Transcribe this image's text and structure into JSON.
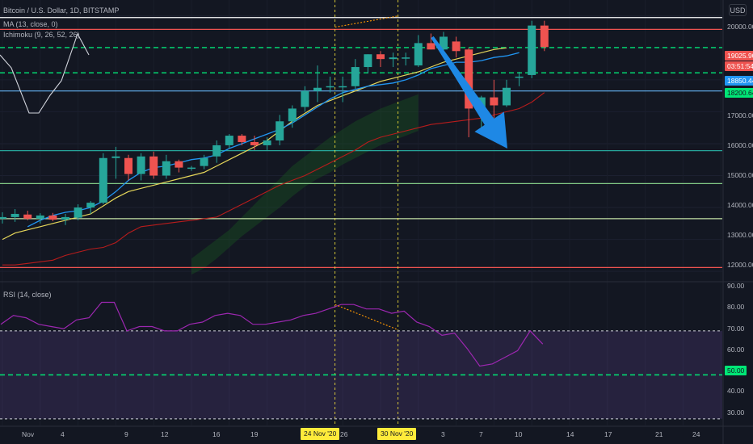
{
  "header": {
    "symbol": "Bitcoin / U.S. Dollar, 1D, BITSTAMP",
    "ma_label": "MA (13, close, 0)",
    "ichimoku_label": "Ichimoku (9, 26, 52, 26)",
    "rsi_label": "RSI (14, close)",
    "currency_button": "USD"
  },
  "price_tags": {
    "last": "19025.90",
    "countdown": "03:51:54",
    "ma": "18850.44",
    "ichimoku": "18200.64",
    "rsi_level": "50.00"
  },
  "x_axis": {
    "ticks": [
      "Nov",
      "4",
      "9",
      "12",
      "16",
      "19",
      "24 Nov '20",
      "26",
      "30 Nov '20",
      "3",
      "7",
      "10",
      "14",
      "17",
      "21",
      "24"
    ],
    "highlights": [
      "24 Nov '20",
      "30 Nov '20"
    ]
  },
  "price_axis": {
    "ticks": [
      "20000.00",
      "17000.00",
      "16000.00",
      "15000.00",
      "14000.00",
      "13000.00",
      "12000.00"
    ]
  },
  "rsi_axis": {
    "ticks": [
      "90.00",
      "80.00",
      "70.00",
      "60.00",
      "40.00",
      "30.00"
    ]
  },
  "colors": {
    "background": "#131722",
    "up": "#26a69a",
    "down": "#ef5350",
    "ma": "#2196f3",
    "tenkan": "#e6d75a",
    "kijun": "#b71c1c",
    "level_green": "#00e676",
    "rsi": "#9c27b0",
    "arrow": "#1e88e5",
    "highlight": "#ffeb3b"
  },
  "chart_data": [
    {
      "type": "candlestick",
      "title": "Bitcoin / U.S. Dollar, 1D, BITSTAMP",
      "ylim": [
        11700,
        20500
      ],
      "candles": [
        {
          "o": 13650,
          "h": 13850,
          "l": 13500,
          "c": 13700
        },
        {
          "o": 13700,
          "h": 13950,
          "l": 13550,
          "c": 13800
        },
        {
          "o": 13780,
          "h": 13900,
          "l": 13600,
          "c": 13650
        },
        {
          "o": 13650,
          "h": 13820,
          "l": 13500,
          "c": 13750
        },
        {
          "o": 13750,
          "h": 13830,
          "l": 13570,
          "c": 13620
        },
        {
          "o": 13620,
          "h": 13800,
          "l": 13450,
          "c": 13700
        },
        {
          "o": 13680,
          "h": 14100,
          "l": 13600,
          "c": 14000
        },
        {
          "o": 14000,
          "h": 14200,
          "l": 13800,
          "c": 14150
        },
        {
          "o": 14150,
          "h": 15700,
          "l": 14100,
          "c": 15550
        },
        {
          "o": 15550,
          "h": 15900,
          "l": 14900,
          "c": 15600
        },
        {
          "o": 15550,
          "h": 15650,
          "l": 14850,
          "c": 15050
        },
        {
          "o": 15050,
          "h": 15700,
          "l": 14850,
          "c": 15600
        },
        {
          "o": 15600,
          "h": 15750,
          "l": 14900,
          "c": 15000
        },
        {
          "o": 15000,
          "h": 15650,
          "l": 14900,
          "c": 15450
        },
        {
          "o": 15450,
          "h": 15500,
          "l": 15100,
          "c": 15250
        },
        {
          "o": 15250,
          "h": 15300,
          "l": 15150,
          "c": 15250
        },
        {
          "o": 15300,
          "h": 15650,
          "l": 15200,
          "c": 15550
        },
        {
          "o": 15600,
          "h": 16100,
          "l": 15400,
          "c": 15950
        },
        {
          "o": 15950,
          "h": 16300,
          "l": 15850,
          "c": 16250
        },
        {
          "o": 16250,
          "h": 16300,
          "l": 15950,
          "c": 16050
        },
        {
          "o": 16050,
          "h": 16250,
          "l": 15800,
          "c": 15950
        },
        {
          "o": 15950,
          "h": 16200,
          "l": 15800,
          "c": 16100
        },
        {
          "o": 16100,
          "h": 16900,
          "l": 15950,
          "c": 16700
        },
        {
          "o": 16700,
          "h": 17200,
          "l": 16500,
          "c": 17100
        },
        {
          "o": 17150,
          "h": 17800,
          "l": 17000,
          "c": 17650
        },
        {
          "o": 17650,
          "h": 18450,
          "l": 17300,
          "c": 17750
        },
        {
          "o": 17800,
          "h": 18100,
          "l": 17600,
          "c": 17800
        },
        {
          "o": 17800,
          "h": 18100,
          "l": 17300,
          "c": 17800
        },
        {
          "o": 17800,
          "h": 18650,
          "l": 17700,
          "c": 18400
        },
        {
          "o": 18400,
          "h": 18800,
          "l": 18200,
          "c": 18800
        },
        {
          "o": 18800,
          "h": 18900,
          "l": 18400,
          "c": 18650
        },
        {
          "o": 18650,
          "h": 18850,
          "l": 18400,
          "c": 18700
        },
        {
          "o": 18700,
          "h": 18850,
          "l": 18450,
          "c": 18700
        },
        {
          "o": 18450,
          "h": 19400,
          "l": 18400,
          "c": 19150
        },
        {
          "o": 19150,
          "h": 19450,
          "l": 18950,
          "c": 18950
        },
        {
          "o": 18950,
          "h": 19500,
          "l": 18800,
          "c": 19350
        },
        {
          "o": 19200,
          "h": 19350,
          "l": 18700,
          "c": 18900
        },
        {
          "o": 18950,
          "h": 19000,
          "l": 16200,
          "c": 17100
        },
        {
          "o": 17000,
          "h": 17500,
          "l": 16400,
          "c": 17450
        },
        {
          "o": 17450,
          "h": 18000,
          "l": 16800,
          "c": 17200
        },
        {
          "o": 17200,
          "h": 18000,
          "l": 17150,
          "c": 17750
        },
        {
          "o": 18100,
          "h": 18250,
          "l": 17800,
          "c": 18100
        },
        {
          "o": 18150,
          "h": 19850,
          "l": 18050,
          "c": 19700
        },
        {
          "o": 19700,
          "h": 19850,
          "l": 18900,
          "c": 19025.9
        }
      ],
      "ma13": [
        13400,
        13600,
        13750,
        13850,
        13900,
        14000,
        14200,
        14500,
        14850,
        15100,
        15250,
        15300,
        15400,
        15500,
        15550,
        15650,
        15850,
        16000,
        16150,
        16300,
        16450,
        16650,
        16900,
        17150,
        17400,
        17600,
        17700,
        17800,
        17850,
        17900,
        18000,
        18150,
        18350,
        18450,
        18550,
        18550,
        18600,
        18700,
        18750,
        18850
      ],
      "tenkan": [
        13000,
        13200,
        13300,
        13400,
        13500,
        13600,
        13700,
        13800,
        14050,
        14300,
        14500,
        14600,
        14700,
        14800,
        14900,
        15000,
        15100,
        15300,
        15500,
        15700,
        15900,
        16100,
        16400,
        16700,
        16950,
        17200,
        17350,
        17500,
        17650,
        17800,
        17950,
        18050,
        18150,
        18250,
        18400,
        18550,
        18650,
        18750,
        18850,
        18950,
        19000
      ],
      "kijun": [
        12200,
        12200,
        12250,
        12300,
        12350,
        12500,
        12600,
        12700,
        12750,
        12900,
        13200,
        13400,
        13450,
        13500,
        13550,
        13600,
        13650,
        13700,
        13900,
        14100,
        14300,
        14500,
        14700,
        14850,
        15000,
        15200,
        15400,
        15600,
        15800,
        16050,
        16200,
        16300,
        16400,
        16500,
        16600,
        16650,
        16700,
        16750,
        16800,
        16900,
        17000,
        17100,
        17300,
        17600
      ],
      "cloud_upper": [
        12400,
        12700,
        13000,
        13300,
        13700,
        14100,
        14500,
        14900,
        15300,
        15600,
        15900,
        16200,
        16450,
        16700,
        16900,
        17100,
        17250,
        17400,
        17550
      ],
      "cloud_lower": [
        11900,
        12100,
        12400,
        12750,
        13100,
        13400,
        13700,
        14000,
        14350,
        14650,
        14900,
        15100,
        15350,
        15550,
        15750,
        15950,
        16100,
        16250,
        16400
      ],
      "levels": [
        {
          "value": 19950,
          "color": "#ffffff"
        },
        {
          "value": 19580,
          "color": "#ef5350"
        },
        {
          "value": 19010,
          "color": "#00e676"
        },
        {
          "value": 18220,
          "color": "#00e676"
        },
        {
          "value": 17650,
          "color": "#64b5f6"
        },
        {
          "value": 15780,
          "color": "#26a69a"
        },
        {
          "value": 14750,
          "color": "#81c784"
        },
        {
          "value": 13650,
          "color": "#c5e1a5"
        },
        {
          "value": 12120,
          "color": "#ef5350"
        }
      ]
    },
    {
      "type": "line",
      "title": "RSI (14, close)",
      "ylim": [
        27,
        92
      ],
      "values": [
        73,
        77,
        76,
        73,
        72,
        71,
        75,
        76,
        83,
        83,
        70,
        72,
        72,
        70,
        70,
        73,
        74,
        77,
        78,
        77,
        73,
        73,
        74,
        75,
        77,
        78,
        80,
        82,
        82,
        80,
        80,
        78,
        79,
        74,
        72,
        68,
        69,
        62,
        54,
        55,
        58,
        61,
        70,
        64
      ],
      "bands": [
        70,
        50,
        30
      ]
    }
  ]
}
